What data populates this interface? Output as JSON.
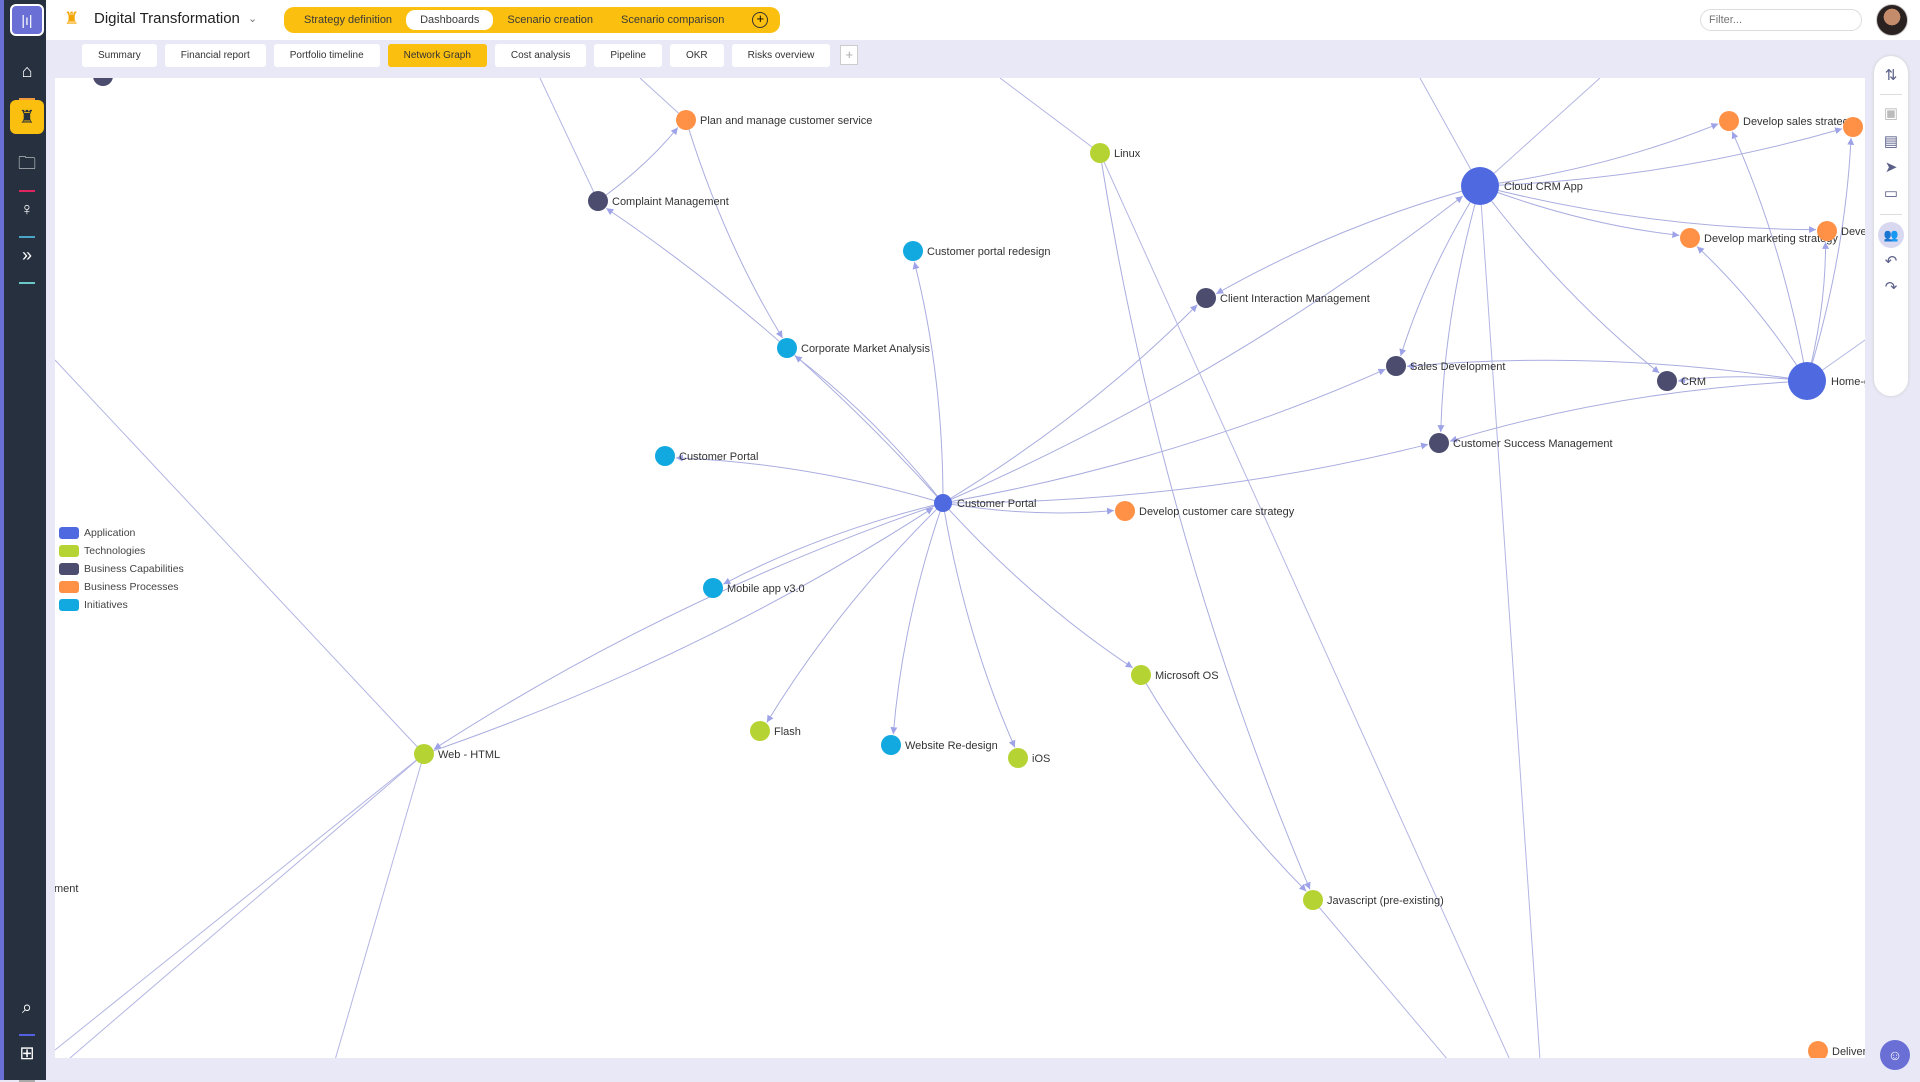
{
  "app": {
    "title": "Digital Transformation",
    "filter_placeholder": "Filter..."
  },
  "topnav": [
    {
      "label": "Strategy definition"
    },
    {
      "label": "Dashboards",
      "active": true
    },
    {
      "label": "Scenario creation"
    },
    {
      "label": "Scenario comparison"
    }
  ],
  "tabs": [
    {
      "label": "Summary"
    },
    {
      "label": "Financial report"
    },
    {
      "label": "Portfolio timeline"
    },
    {
      "label": "Network Graph",
      "active": true
    },
    {
      "label": "Cost analysis"
    },
    {
      "label": "Pipeline"
    },
    {
      "label": "OKR"
    },
    {
      "label": "Risks overview"
    }
  ],
  "sidebar": [
    {
      "icon": "home-icon",
      "underline": "#f39a3c"
    },
    {
      "icon": "strategy-icon",
      "active": true
    },
    {
      "icon": "folder-icon",
      "underline": "#e0245e"
    },
    {
      "icon": "lightbulb-icon",
      "underline": "#4aa6c8"
    },
    {
      "icon": "chevrons-right-icon",
      "underline": "#6cc8c8"
    },
    {
      "icon": "search-icon",
      "underline": "#5560e0"
    },
    {
      "icon": "add-icon",
      "underline": "#aaaaaa"
    }
  ],
  "legend": [
    {
      "label": "Application",
      "color": "#4f6ae0"
    },
    {
      "label": "Technologies",
      "color": "#b6d334"
    },
    {
      "label": "Business Capabilities",
      "color": "#4b4c6e"
    },
    {
      "label": "Business Processes",
      "color": "#ff9147"
    },
    {
      "label": "Initiatives",
      "color": "#12a8e0"
    }
  ],
  "graph": {
    "nodes": [
      {
        "label": "Plan and manage customer service",
        "type": 3
      },
      {
        "label": "Linux",
        "type": 1
      },
      {
        "label": "Complaint Management",
        "type": 2
      },
      {
        "label": "Customer portal redesign",
        "type": 4
      },
      {
        "label": "Corporate Market Analysis",
        "type": 4
      },
      {
        "label": "Client Interaction Management",
        "type": 2
      },
      {
        "label": "Cloud CRM App",
        "type": 0,
        "big": true
      },
      {
        "label": "Develop sales strategy",
        "type": 3
      },
      {
        "label": "",
        "type": 3
      },
      {
        "label": "Develop marketing strategy",
        "type": 3
      },
      {
        "label": "Deve",
        "type": 3
      },
      {
        "label": "Sales Development",
        "type": 2
      },
      {
        "label": "CRM",
        "type": 2
      },
      {
        "label": "Home-g",
        "type": 0,
        "big": true
      },
      {
        "label": "Customer Success Management",
        "type": 2
      },
      {
        "label": "Customer Portal",
        "type": 4
      },
      {
        "label": "Customer Portal",
        "type": 0
      },
      {
        "label": "Develop customer care strategy",
        "type": 3
      },
      {
        "label": "Mobile app v3.0",
        "type": 4
      },
      {
        "label": "Microsoft OS",
        "type": 1
      },
      {
        "label": "Flash",
        "type": 1
      },
      {
        "label": "Website Re-design",
        "type": 4
      },
      {
        "label": "iOS",
        "type": 1
      },
      {
        "label": "Web - HTML",
        "type": 1
      },
      {
        "label": "Javascript (pre-existing)",
        "type": 1
      },
      {
        "label": "ment",
        "type": -1
      },
      {
        "label": "Deliver",
        "type": 3
      },
      {
        "label": "",
        "type": 2
      }
    ],
    "edges": [
      [
        16,
        2
      ],
      [
        16,
        3
      ],
      [
        16,
        4
      ],
      [
        16,
        15
      ],
      [
        16,
        17
      ],
      [
        16,
        18
      ],
      [
        16,
        19
      ],
      [
        16,
        20
      ],
      [
        16,
        21
      ],
      [
        16,
        22
      ],
      [
        16,
        23
      ],
      [
        16,
        5
      ],
      [
        16,
        11
      ],
      [
        16,
        14
      ],
      [
        16,
        6
      ],
      [
        6,
        7
      ],
      [
        6,
        8
      ],
      [
        6,
        9
      ],
      [
        6,
        10
      ],
      [
        6,
        11
      ],
      [
        6,
        12
      ],
      [
        6,
        14
      ],
      [
        6,
        5
      ],
      [
        13,
        7
      ],
      [
        13,
        9
      ],
      [
        13,
        10
      ],
      [
        13,
        12
      ],
      [
        13,
        11
      ],
      [
        13,
        14
      ],
      [
        19,
        24
      ],
      [
        1,
        24
      ],
      [
        0,
        4
      ],
      [
        2,
        0
      ],
      [
        23,
        16
      ],
      [
        13,
        8
      ]
    ]
  }
}
